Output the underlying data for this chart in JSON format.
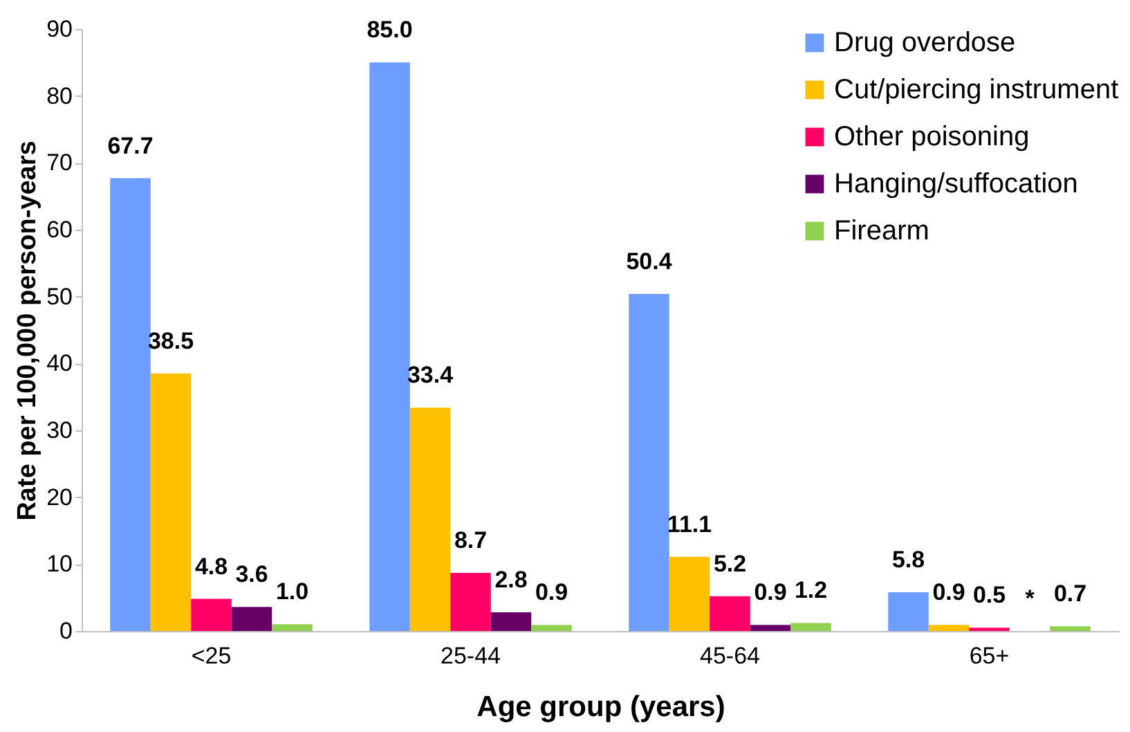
{
  "chart_data": {
    "type": "bar",
    "xlabel": "Age group (years)",
    "ylabel": "Rate per 100,000 person-years",
    "categories": [
      "<25",
      "25-44",
      "45-64",
      "65+"
    ],
    "series": [
      {
        "name": "Drug overdose",
        "color": "#6d9eff",
        "values": [
          67.7,
          85.0,
          50.4,
          5.8
        ],
        "value_labels": [
          "67.7",
          "85.0",
          "50.4",
          "5.8"
        ]
      },
      {
        "name": "Cut/piercing instrument",
        "color": "#ffc000",
        "values": [
          38.5,
          33.4,
          11.1,
          0.9
        ],
        "value_labels": [
          "38.5",
          "33.4",
          "11.1",
          "0.9"
        ]
      },
      {
        "name": "Other poisoning",
        "color": "#ff0066",
        "values": [
          4.8,
          8.7,
          5.2,
          0.5
        ],
        "value_labels": [
          "4.8",
          "8.7",
          "5.2",
          "0.5"
        ]
      },
      {
        "name": "Hanging/suffocation",
        "color": "#660066",
        "values": [
          3.6,
          2.8,
          0.9,
          null
        ],
        "value_labels": [
          "3.6",
          "2.8",
          "0.9",
          "*"
        ]
      },
      {
        "name": "Firearm",
        "color": "#92d050",
        "values": [
          1.0,
          0.9,
          1.2,
          0.7
        ],
        "value_labels": [
          "1.0",
          "0.9",
          "1.2",
          "0.7"
        ]
      }
    ],
    "ylim": [
      0,
      90
    ],
    "yticks": [
      0,
      10,
      20,
      30,
      40,
      50,
      60,
      70,
      80,
      90
    ],
    "grid": false,
    "legend": "top right"
  }
}
